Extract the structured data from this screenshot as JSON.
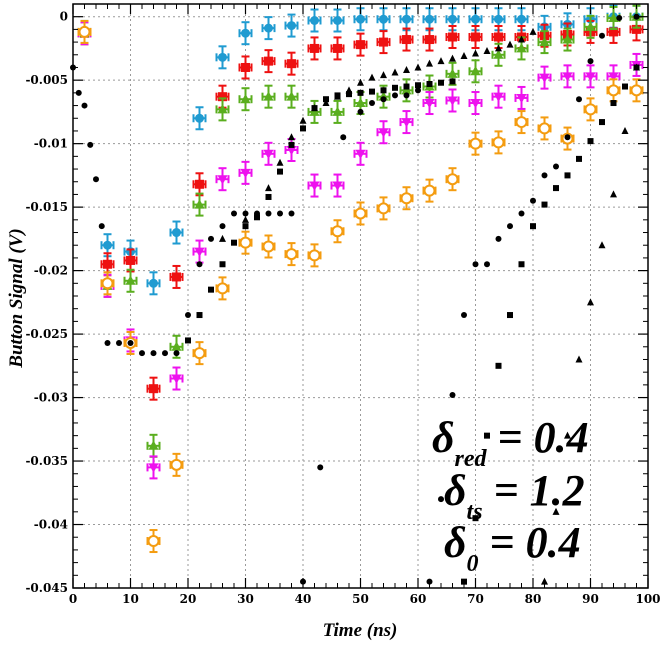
{
  "chart_data": {
    "type": "scatter",
    "title": "",
    "xlabel": "Time (ns)",
    "ylabel": "Button Signal (V)",
    "xlim": [
      0,
      100
    ],
    "ylim": [
      -0.045,
      0.001
    ],
    "grid": true,
    "x_ticks": [
      0,
      10,
      20,
      30,
      40,
      50,
      60,
      70,
      80,
      90,
      100
    ],
    "y_ticks": [
      0,
      -0.005,
      -0.01,
      -0.015,
      -0.02,
      -0.025,
      -0.03,
      -0.035,
      -0.04,
      -0.045
    ],
    "x_tick_labels": [
      "0",
      "10",
      "20",
      "30",
      "40",
      "50",
      "60",
      "70",
      "80",
      "90",
      "100"
    ],
    "y_tick_labels": [
      "0",
      "-0.005",
      "-0.01",
      "-0.015",
      "-0.02",
      "-0.025",
      "-0.03",
      "-0.035",
      "-0.04",
      "-0.045"
    ],
    "annotations": [
      {
        "base": "δ",
        "sub": "red",
        "rest": " = 0.4"
      },
      {
        "base": "δ",
        "sub": "ts",
        "rest": " = 1.2"
      },
      {
        "base": "δ",
        "sub": "0",
        "rest": " = 0.4"
      }
    ],
    "series": [
      {
        "marker": "circle-filled",
        "color": "#1f9bd1",
        "x": [
          2,
          6,
          10,
          14,
          18,
          22,
          26,
          30,
          34,
          38,
          42,
          46,
          50,
          54,
          58,
          62,
          66,
          70,
          74,
          78,
          82,
          86,
          90,
          94,
          98
        ],
        "y": [
          -0.0012,
          -0.018,
          -0.0185,
          -0.021,
          -0.017,
          -0.008,
          -0.0032,
          -0.0013,
          -0.0009,
          -0.0007,
          -0.0003,
          -0.0003,
          -0.0002,
          -0.0002,
          -0.0002,
          -0.0002,
          -0.0002,
          -0.0002,
          -0.0002,
          -0.0002,
          -0.0008,
          -0.0006,
          -0.0002,
          0,
          0
        ]
      },
      {
        "marker": "square-filled",
        "color": "#ee1111",
        "x": [
          2,
          6,
          10,
          14,
          18,
          22,
          26,
          30,
          34,
          38,
          42,
          46,
          50,
          54,
          58,
          62,
          66,
          70,
          74,
          78,
          82,
          86,
          90,
          94,
          98
        ],
        "y": [
          -0.0013,
          -0.0195,
          -0.0192,
          -0.0293,
          -0.0205,
          -0.0132,
          -0.0063,
          -0.004,
          -0.0035,
          -0.0037,
          -0.0025,
          -0.0025,
          -0.0022,
          -0.002,
          -0.0018,
          -0.0018,
          -0.0016,
          -0.0016,
          -0.0016,
          -0.0016,
          -0.0015,
          -0.0014,
          -0.0012,
          -0.0012,
          -0.001
        ]
      },
      {
        "marker": "triangle-up-filled",
        "color": "#5aae1e",
        "x": [
          2,
          6,
          10,
          14,
          18,
          22,
          26,
          30,
          34,
          38,
          42,
          46,
          50,
          54,
          58,
          62,
          66,
          70,
          74,
          78,
          82,
          86,
          90,
          94,
          98
        ],
        "y": [
          -0.0013,
          -0.0212,
          -0.0208,
          -0.0338,
          -0.026,
          -0.0148,
          -0.0073,
          -0.0065,
          -0.0063,
          -0.0063,
          -0.0075,
          -0.0075,
          -0.0068,
          -0.0063,
          -0.0058,
          -0.0055,
          -0.0045,
          -0.0043,
          -0.003,
          -0.0025,
          -0.002,
          -0.0018,
          -0.0008,
          -0.0001,
          0
        ]
      },
      {
        "marker": "triangle-down-filled",
        "color": "#ee11ee",
        "x": [
          2,
          6,
          10,
          14,
          18,
          22,
          26,
          30,
          34,
          38,
          42,
          46,
          50,
          54,
          58,
          62,
          66,
          70,
          74,
          78,
          82,
          86,
          90,
          94,
          98
        ],
        "y": [
          -0.0013,
          -0.0212,
          -0.0255,
          -0.0355,
          -0.0285,
          -0.0185,
          -0.0128,
          -0.0123,
          -0.0108,
          -0.0105,
          -0.0133,
          -0.0133,
          -0.0108,
          -0.0091,
          -0.0083,
          -0.0068,
          -0.0066,
          -0.0068,
          -0.0063,
          -0.0064,
          -0.0048,
          -0.0047,
          -0.0047,
          -0.0047,
          -0.0038
        ]
      },
      {
        "marker": "circle-open",
        "color": "#f49c10",
        "x": [
          2,
          6,
          10,
          14,
          18,
          22,
          26,
          30,
          34,
          38,
          42,
          46,
          50,
          54,
          58,
          62,
          66,
          70,
          74,
          78,
          82,
          86,
          90,
          94,
          98
        ],
        "y": [
          -0.0012,
          -0.021,
          -0.0257,
          -0.0413,
          -0.0353,
          -0.0265,
          -0.0214,
          -0.0178,
          -0.0181,
          -0.0187,
          -0.0188,
          -0.0169,
          -0.0155,
          -0.0151,
          -0.0143,
          -0.0137,
          -0.0128,
          -0.01,
          -0.0099,
          -0.0083,
          -0.0088,
          -0.0096,
          -0.0073,
          -0.0058,
          -0.0058
        ]
      },
      {
        "marker": "dots-black-circle",
        "color": "#000000",
        "x": [
          0,
          1,
          2,
          3,
          4,
          5,
          6,
          8,
          10,
          12,
          14,
          16,
          18,
          20,
          22,
          24,
          26,
          28,
          30,
          32,
          34,
          36,
          38,
          40,
          43,
          47,
          50,
          52,
          54,
          56,
          58,
          60,
          62,
          64,
          66,
          68,
          70,
          72,
          74,
          76,
          78,
          80,
          82,
          84,
          86,
          88,
          90,
          92,
          95,
          98
        ],
        "y": [
          -0.004,
          -0.006,
          -0.007,
          -0.0101,
          -0.0128,
          -0.0165,
          -0.0257,
          -0.0257,
          -0.0257,
          -0.0265,
          -0.0265,
          -0.0265,
          -0.0265,
          -0.0235,
          -0.0195,
          -0.0175,
          -0.0165,
          -0.0155,
          -0.0155,
          -0.0155,
          -0.0155,
          -0.0155,
          -0.0155,
          -0.0445,
          -0.0355,
          -0.0095,
          -0.0075,
          -0.0068,
          -0.0065,
          -0.0062,
          -0.0062,
          -0.0058,
          -0.0445,
          -0.038,
          -0.0298,
          -0.0235,
          -0.0195,
          -0.0195,
          -0.0175,
          -0.0165,
          -0.0155,
          -0.0145,
          -0.0125,
          -0.0118,
          -0.0095,
          -0.0065,
          -0.0035,
          -0.0015,
          -0.0001,
          0
        ]
      },
      {
        "marker": "dots-black-square",
        "color": "#000000",
        "x": [
          20,
          22,
          24,
          26,
          28,
          30,
          32,
          34,
          36,
          38,
          40,
          42,
          44,
          46,
          48,
          50,
          52,
          54,
          56,
          58,
          60,
          62,
          64,
          66,
          68,
          70,
          72,
          74,
          76,
          78,
          80,
          82,
          84,
          86,
          88,
          90,
          92,
          94,
          96,
          98
        ],
        "y": [
          -0.0255,
          -0.0235,
          -0.0215,
          -0.0195,
          -0.0178,
          -0.0165,
          -0.0158,
          -0.0142,
          -0.0122,
          -0.0101,
          -0.0088,
          -0.0072,
          -0.0065,
          -0.0062,
          -0.0061,
          -0.006,
          -0.0059,
          -0.0058,
          -0.0056,
          -0.0055,
          -0.0054,
          -0.0053,
          -0.0052,
          -0.0051,
          -0.0445,
          -0.0395,
          -0.033,
          -0.0275,
          -0.0235,
          -0.0195,
          -0.0165,
          -0.0148,
          -0.0135,
          -0.0125,
          -0.0112,
          -0.0098,
          -0.0083,
          -0.0068,
          -0.0055,
          -0.004
        ]
      },
      {
        "marker": "dots-black-triangle",
        "color": "#000000",
        "x": [
          26,
          30,
          34,
          36,
          38,
          40,
          42,
          44,
          46,
          48,
          50,
          52,
          54,
          56,
          58,
          60,
          62,
          64,
          66,
          68,
          70,
          72,
          74,
          76,
          78,
          80,
          82,
          84,
          86,
          88,
          90,
          92,
          94,
          96,
          98
        ],
        "y": [
          -0.0175,
          -0.016,
          -0.0135,
          -0.0115,
          -0.0095,
          -0.0082,
          -0.0072,
          -0.0068,
          -0.0063,
          -0.0058,
          -0.0052,
          -0.0048,
          -0.0046,
          -0.0044,
          -0.0042,
          -0.004,
          -0.0037,
          -0.0035,
          -0.0033,
          -0.0031,
          -0.0029,
          -0.0027,
          -0.0025,
          -0.0022,
          -0.0018,
          -0.0012,
          -0.0445,
          -0.039,
          -0.033,
          -0.027,
          -0.0225,
          -0.018,
          -0.014,
          -0.009,
          -0.004
        ]
      }
    ]
  }
}
